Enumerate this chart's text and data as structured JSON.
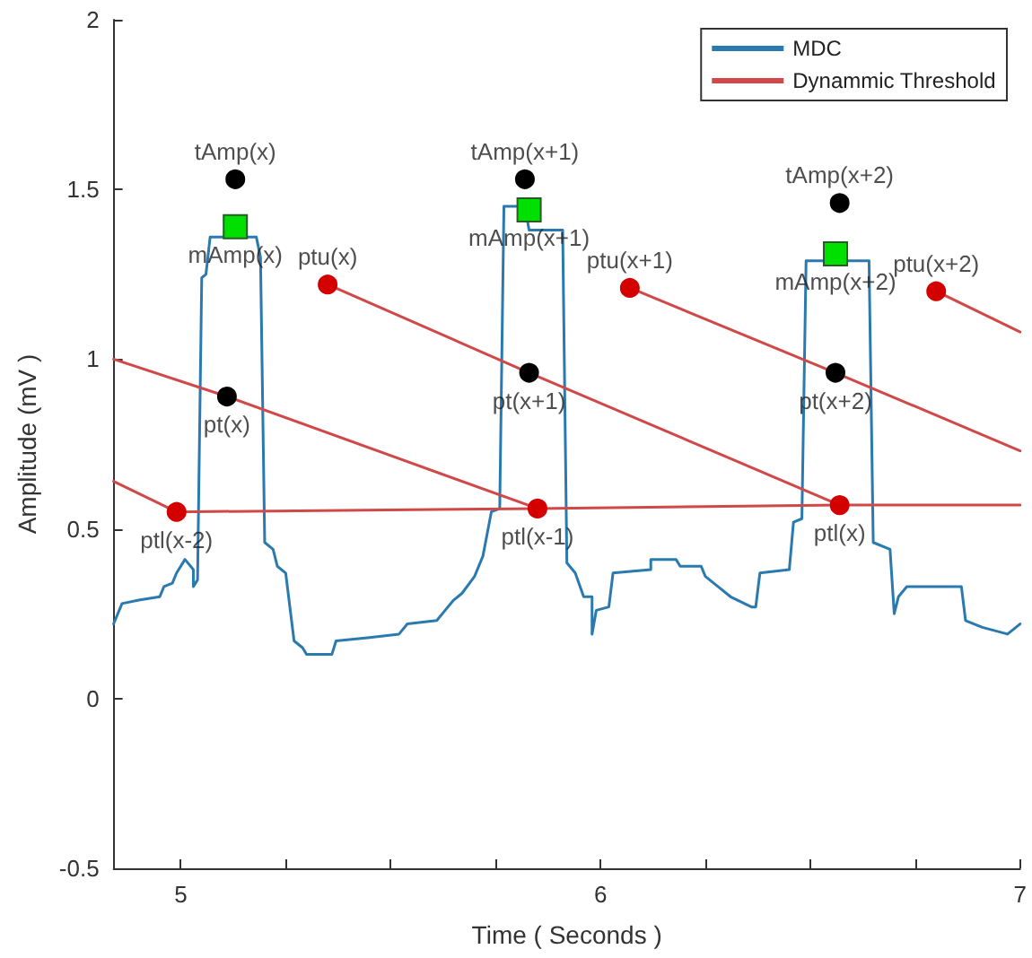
{
  "chart_data": {
    "type": "line",
    "xlabel": "Time ( Seconds )",
    "ylabel": "Amplitude (mV )",
    "xlim": [
      4.84,
      7.0
    ],
    "xticks": [
      5,
      {
        "value": 5.25,
        "label": null
      },
      {
        "value": 5.5,
        "label": null
      },
      {
        "value": 5.75,
        "label": null
      },
      6,
      {
        "value": 6.25,
        "label": null
      },
      {
        "value": 6.5,
        "label": null
      },
      {
        "value": 6.75,
        "label": null
      },
      7
    ],
    "ylim": [
      -0.5,
      2
    ],
    "yticks": [
      -0.5,
      0,
      0.5,
      1,
      1.5,
      2
    ],
    "legend": "top right",
    "marker": "none",
    "line_style": "solid",
    "series": [
      {
        "name": "MDC",
        "color": "#2a7ab0",
        "x": [
          4.84,
          4.86,
          4.9,
          4.95,
          4.96,
          4.98,
          4.99,
          5.01,
          5.03,
          5.03,
          5.04,
          5.05,
          5.06,
          5.07,
          5.18,
          5.19,
          5.2,
          5.22,
          5.23,
          5.25,
          5.27,
          5.29,
          5.3,
          5.36,
          5.37,
          5.45,
          5.52,
          5.54,
          5.61,
          5.63,
          5.65,
          5.67,
          5.7,
          5.72,
          5.74,
          5.76,
          5.77,
          5.82,
          5.83,
          5.91,
          5.92,
          5.94,
          5.96,
          5.98,
          5.98,
          5.99,
          6.02,
          6.03,
          6.12,
          6.12,
          6.18,
          6.19,
          6.24,
          6.25,
          6.28,
          6.31,
          6.36,
          6.37,
          6.38,
          6.45,
          6.46,
          6.48,
          6.49,
          6.64,
          6.65,
          6.69,
          6.7,
          6.71,
          6.73,
          6.86,
          6.87,
          6.91,
          6.97,
          7.0
        ],
        "values": [
          0.22,
          0.28,
          0.29,
          0.3,
          0.33,
          0.34,
          0.37,
          0.41,
          0.38,
          0.33,
          0.35,
          1.24,
          1.25,
          1.36,
          1.36,
          1.3,
          0.46,
          0.44,
          0.39,
          0.37,
          0.17,
          0.15,
          0.13,
          0.13,
          0.17,
          0.18,
          0.19,
          0.22,
          0.23,
          0.26,
          0.29,
          0.31,
          0.36,
          0.42,
          0.55,
          0.56,
          1.45,
          1.45,
          1.38,
          1.38,
          0.4,
          0.37,
          0.3,
          0.3,
          0.19,
          0.26,
          0.27,
          0.37,
          0.38,
          0.41,
          0.41,
          0.39,
          0.39,
          0.36,
          0.33,
          0.3,
          0.27,
          0.27,
          0.37,
          0.38,
          0.52,
          0.53,
          1.29,
          1.29,
          0.46,
          0.44,
          0.25,
          0.3,
          0.33,
          0.33,
          0.23,
          0.21,
          0.19,
          0.22
        ]
      },
      {
        "name": "Dynammic Threshold",
        "color": "#d04848",
        "x": [
          4.84,
          4.99,
          5.85,
          6.57,
          7.0
        ],
        "values": [
          0.64,
          0.55,
          0.56,
          0.57,
          0.57
        ]
      },
      {
        "color": "#d04848",
        "x": [
          4.84,
          5.11,
          5.85
        ],
        "values": [
          1.0,
          0.89,
          0.56
        ]
      },
      {
        "color": "#d04848",
        "x": [
          5.35,
          5.83,
          6.57
        ],
        "values": [
          1.22,
          0.96,
          0.57
        ]
      },
      {
        "color": "#d04848",
        "x": [
          6.07,
          6.56,
          7.0
        ],
        "values": [
          1.21,
          0.96,
          0.73
        ]
      },
      {
        "color": "#d04848",
        "x": [
          6.8,
          7.0
        ],
        "values": [
          1.2,
          1.08
        ]
      },
      {
        "type": "scatter",
        "color": "#000000",
        "marker": "circle",
        "x": [
          5.13,
          5.11,
          5.82,
          5.83,
          6.57,
          6.56
        ],
        "values": [
          1.53,
          0.89,
          1.53,
          0.96,
          1.46,
          0.96
        ]
      },
      {
        "type": "scatter",
        "color": "#d40000",
        "marker": "circle",
        "x": [
          4.99,
          5.35,
          5.85,
          6.07,
          6.57,
          6.8
        ],
        "values": [
          0.55,
          1.22,
          0.56,
          1.21,
          0.57,
          1.2
        ]
      },
      {
        "type": "scatter",
        "color": "#00e000",
        "marker": "square",
        "x": [
          5.13,
          5.83,
          6.56
        ],
        "values": [
          1.39,
          1.44,
          1.31
        ]
      }
    ],
    "annotations": [
      {
        "text": "tAmp(x)",
        "x": 5.13,
        "y": 1.53
      },
      {
        "text": "mAmp(x)",
        "x": 5.13,
        "y": 1.39
      },
      {
        "text": "pt(x)",
        "x": 5.11,
        "y": 0.89
      },
      {
        "text": "ptl(x-2)",
        "x": 4.99,
        "y": 0.55
      },
      {
        "text": "ptu(x)",
        "x": 5.35,
        "y": 1.22
      },
      {
        "text": "tAmp(x+1)",
        "x": 5.82,
        "y": 1.53
      },
      {
        "text": "mAmp(x+1)",
        "x": 5.83,
        "y": 1.44
      },
      {
        "text": "pt(x+1)",
        "x": 5.83,
        "y": 0.96
      },
      {
        "text": "ptl(x-1)",
        "x": 5.85,
        "y": 0.56
      },
      {
        "text": "ptu(x+1)",
        "x": 6.07,
        "y": 1.21
      },
      {
        "text": "tAmp(x+2)",
        "x": 6.57,
        "y": 1.46
      },
      {
        "text": "mAmp(x+2)",
        "x": 6.56,
        "y": 1.31
      },
      {
        "text": "pt(x+2)",
        "x": 6.56,
        "y": 0.96
      },
      {
        "text": "ptl(x)",
        "x": 6.57,
        "y": 0.57
      },
      {
        "text": "ptu(x+2)",
        "x": 6.8,
        "y": 1.2
      }
    ]
  }
}
